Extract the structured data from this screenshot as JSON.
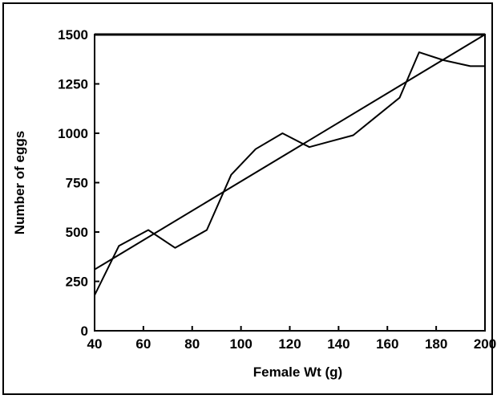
{
  "chart_data": {
    "type": "line",
    "title": "",
    "xlabel": "Female Wt (g)",
    "ylabel": "Number of eggs",
    "xlim": [
      40,
      200
    ],
    "ylim": [
      0,
      1500
    ],
    "xticks": [
      "40",
      "60",
      "80",
      "100",
      "120",
      "140",
      "160",
      "180",
      "200"
    ],
    "yticks": [
      "0",
      "250",
      "500",
      "750",
      "1000",
      "1250",
      "1500"
    ],
    "grid": false,
    "legend": "none",
    "series": [
      {
        "type": "line",
        "x": [
          40,
          50,
          62,
          73,
          86,
          96,
          106,
          117,
          128,
          137,
          146,
          155,
          165,
          173,
          183,
          194,
          200
        ],
        "y": [
          180,
          430,
          510,
          420,
          510,
          790,
          920,
          1000,
          930,
          960,
          990,
          1080,
          1180,
          1410,
          1370,
          1340,
          1340
        ]
      },
      {
        "type": "line",
        "x": [
          40,
          200
        ],
        "y": [
          310,
          1500
        ]
      }
    ]
  }
}
